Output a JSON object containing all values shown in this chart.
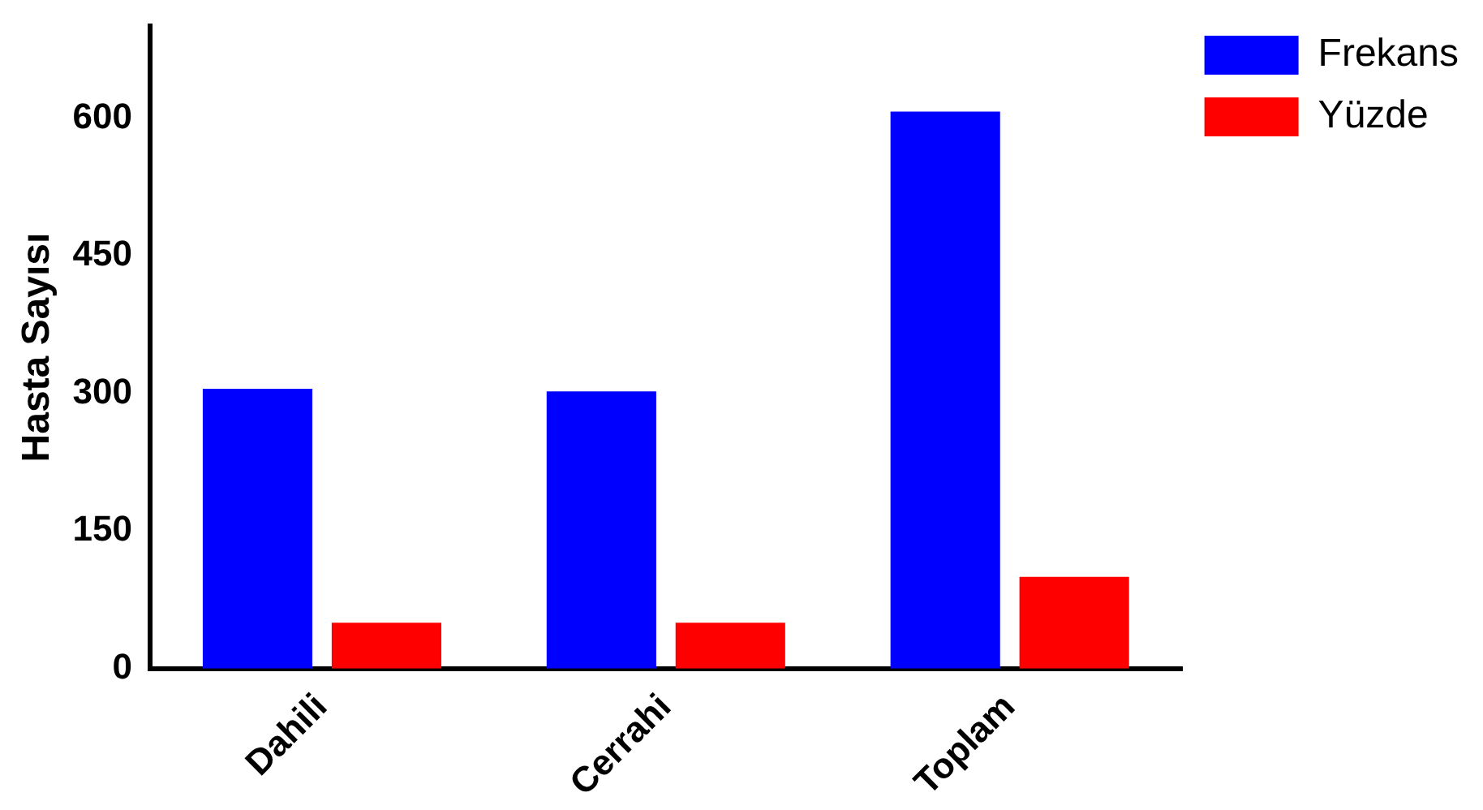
{
  "chart_data": {
    "type": "bar",
    "ylabel": "Hasta Sayısı",
    "categories": [
      "Dahili",
      "Cerrahi",
      "Toplam"
    ],
    "series": [
      {
        "name": "Frekans",
        "color": "#0000ff",
        "values": [
          305,
          302,
          607
        ]
      },
      {
        "name": "Yüzde",
        "color": "#ff0000",
        "values": [
          50,
          50,
          100
        ]
      }
    ],
    "ylim": [
      0,
      700
    ],
    "yticks": [
      0,
      150,
      300,
      450,
      600
    ],
    "grid": false,
    "legend": "right top"
  }
}
